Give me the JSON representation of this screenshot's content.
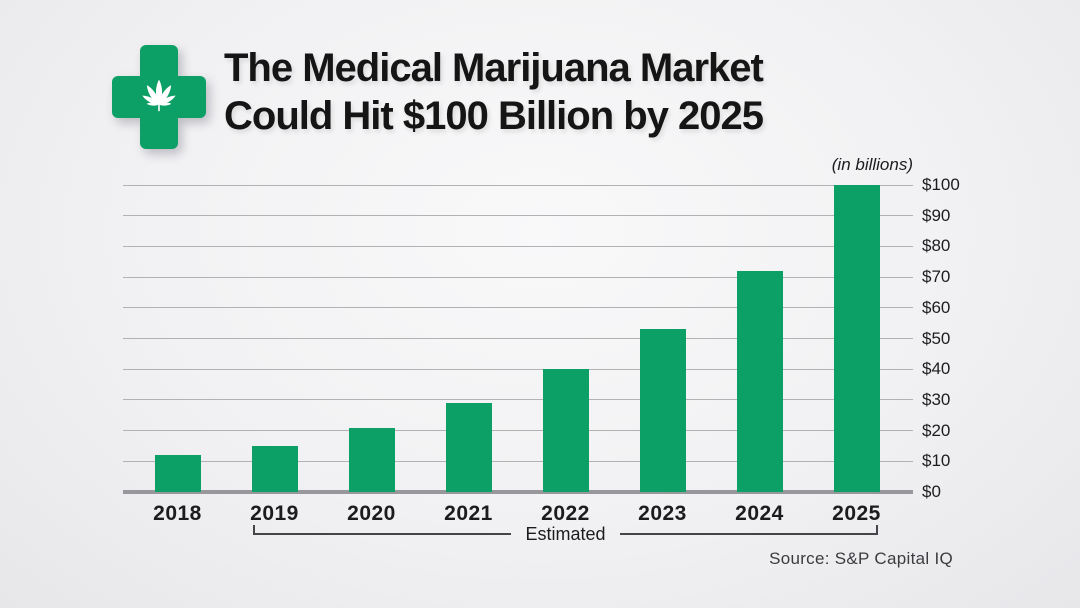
{
  "header": {
    "title_line1": "The Medical Marijuana Market",
    "title_line2": "Could Hit $100 Billion by 2025"
  },
  "chart_data": {
    "type": "bar",
    "title": "The Medical Marijuana Market Could Hit $100 Billion by 2025",
    "unit_note": "(in billions)",
    "categories": [
      "2018",
      "2019",
      "2020",
      "2021",
      "2022",
      "2023",
      "2024",
      "2025"
    ],
    "values": [
      12,
      15,
      21,
      29,
      40,
      53,
      72,
      100
    ],
    "ylim": [
      0,
      100
    ],
    "ytick_step": 10,
    "ytick_labels": [
      "$0",
      "$10",
      "$20",
      "$30",
      "$40",
      "$50",
      "$60",
      "$70",
      "$80",
      "$90",
      "$100"
    ],
    "grid": true,
    "legend_position": "none",
    "bar_color": "#0da066",
    "annotation": {
      "label": "Estimated",
      "applies_to": [
        "2019",
        "2020",
        "2021",
        "2022",
        "2023",
        "2024",
        "2025"
      ]
    },
    "source": "Source: S&P Capital IQ"
  },
  "colors": {
    "accent_green": "#0da066",
    "gridline": "#b2b2b6",
    "baseline": "#97979c",
    "title_text": "#151515"
  }
}
